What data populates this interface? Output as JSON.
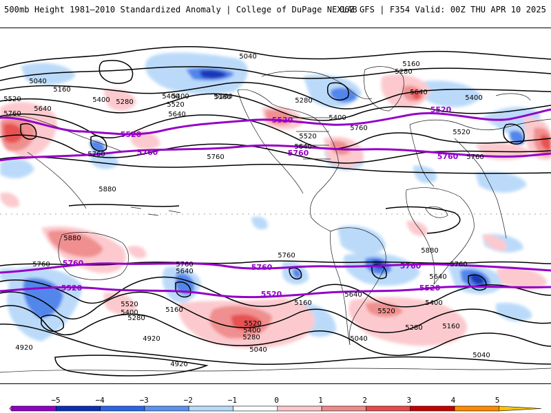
{
  "header": {
    "left": "500mb Height 1981–2010 Standardized Anomaly | College of DuPage NEXLAB",
    "right": "06Z GFS | F354 Valid: 00Z THU APR 10 2025"
  },
  "colorbar": {
    "ticks": [
      "−5",
      "−4",
      "−3",
      "−2",
      "−1",
      "0",
      "1",
      "2",
      "3",
      "4",
      "5"
    ],
    "colors": [
      "#ff73e8",
      "#8f00c4",
      "#0a2fb4",
      "#2c64e6",
      "#5c92f0",
      "#b8d9fa",
      "#ffffff",
      "#fcc8cc",
      "#f08a8a",
      "#e64a4a",
      "#c40000",
      "#ff8a00",
      "#ffc400"
    ]
  },
  "contour_labels": {
    "north": [
      "5040",
      "5160",
      "5040",
      "5520",
      "5640",
      "5760",
      "5400",
      "5280",
      "5400",
      "5520",
      "5640",
      "5160",
      "5280",
      "5160",
      "5280",
      "5400",
      "5640",
      "5520",
      "5760",
      "5640",
      "5520",
      "5400",
      "5160",
      "5400",
      "5760",
      "5880",
      "5760",
      "5760"
    ],
    "south": [
      "5880",
      "5760",
      "5760",
      "5640",
      "5760",
      "5880",
      "5760",
      "5640",
      "5640",
      "5520",
      "5400",
      "5280",
      "5160",
      "5040",
      "4920",
      "5520",
      "5400",
      "5280",
      "5160",
      "5040",
      "4920",
      "5520",
      "5400",
      "5280",
      "5160",
      "5040"
    ]
  },
  "purple_labels": [
    "5520",
    "5520",
    "5760",
    "5520",
    "5760",
    "5760",
    "5520",
    "5760",
    "5760",
    "5520",
    "5520",
    "5760",
    "5520"
  ],
  "colors": {
    "purple": "#9500c8",
    "contour": "#000000",
    "land": "#1a1a1a"
  }
}
